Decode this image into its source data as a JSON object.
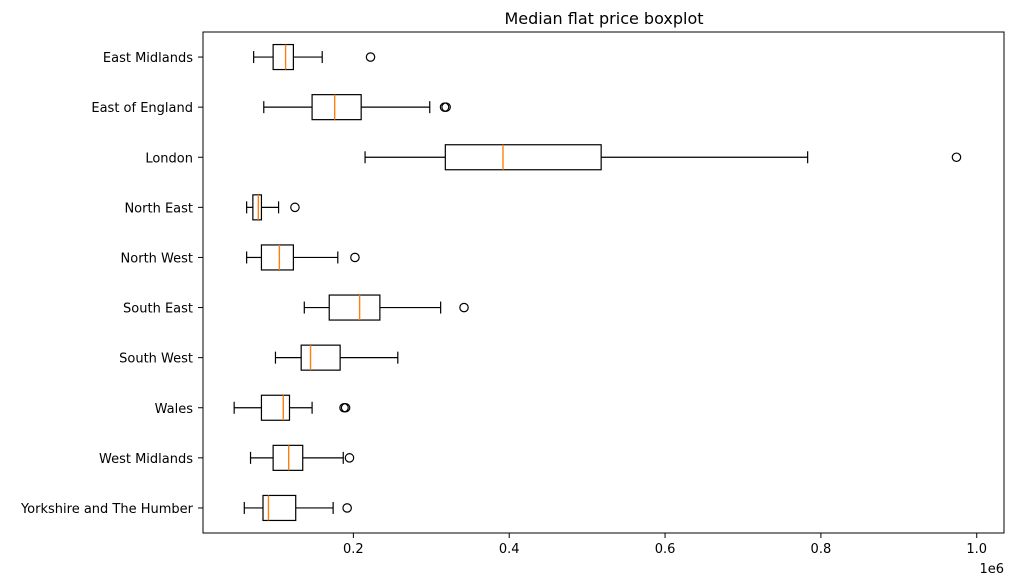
{
  "chart_data": {
    "type": "boxplot",
    "orientation": "horizontal",
    "title": "Median flat price boxplot",
    "xlabel": "",
    "ylabel": "",
    "x_offset_text": "1e6",
    "xlim": [
      0.007,
      1.035
    ],
    "xticks": [
      0.2,
      0.4,
      0.6,
      0.8,
      1.0
    ],
    "xtick_labels": [
      "0.2",
      "0.4",
      "0.6",
      "0.8",
      "1.0"
    ],
    "grid": false,
    "categories": [
      "East Midlands",
      "East of England",
      "London",
      "North East",
      "North West",
      "South East",
      "South West",
      "Wales",
      "West Midlands",
      "Yorkshire and The Humber"
    ],
    "boxes": [
      {
        "category": "East Midlands",
        "whislo": 0.072,
        "q1": 0.097,
        "med": 0.113,
        "q3": 0.123,
        "whishi": 0.16,
        "fliers": [
          0.222
        ]
      },
      {
        "category": "East of England",
        "whislo": 0.085,
        "q1": 0.147,
        "med": 0.176,
        "q3": 0.21,
        "whishi": 0.298,
        "fliers": [
          0.317,
          0.319
        ]
      },
      {
        "category": "London",
        "whislo": 0.215,
        "q1": 0.318,
        "med": 0.392,
        "q3": 0.518,
        "whishi": 0.783,
        "fliers": [
          0.974
        ]
      },
      {
        "category": "North East",
        "whislo": 0.063,
        "q1": 0.071,
        "med": 0.078,
        "q3": 0.082,
        "whishi": 0.104,
        "fliers": [
          0.125
        ]
      },
      {
        "category": "North West",
        "whislo": 0.063,
        "q1": 0.082,
        "med": 0.105,
        "q3": 0.123,
        "whishi": 0.18,
        "fliers": [
          0.202
        ]
      },
      {
        "category": "South East",
        "whislo": 0.137,
        "q1": 0.169,
        "med": 0.208,
        "q3": 0.234,
        "whishi": 0.312,
        "fliers": [
          0.342
        ]
      },
      {
        "category": "South West",
        "whislo": 0.1,
        "q1": 0.133,
        "med": 0.145,
        "q3": 0.183,
        "whishi": 0.257,
        "fliers": []
      },
      {
        "category": "Wales",
        "whislo": 0.047,
        "q1": 0.082,
        "med": 0.11,
        "q3": 0.118,
        "whishi": 0.147,
        "fliers": [
          0.188,
          0.19
        ]
      },
      {
        "category": "West Midlands",
        "whislo": 0.068,
        "q1": 0.097,
        "med": 0.117,
        "q3": 0.135,
        "whishi": 0.187,
        "fliers": [
          0.195
        ]
      },
      {
        "category": "Yorkshire and The Humber",
        "whislo": 0.06,
        "q1": 0.084,
        "med": 0.091,
        "q3": 0.126,
        "whishi": 0.174,
        "fliers": [
          0.192
        ]
      }
    ],
    "colors": {
      "box": "#000000",
      "median": "#ff7f0e",
      "flier": "#000000"
    }
  }
}
